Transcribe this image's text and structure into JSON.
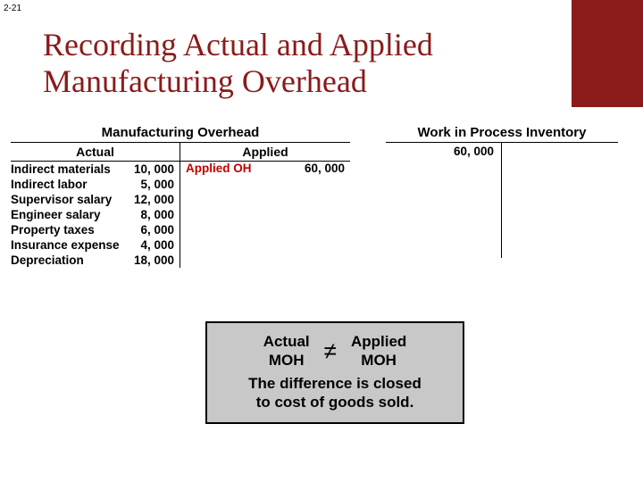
{
  "page_number": "2-21",
  "title": "Recording Actual and Applied Manufacturing Overhead",
  "colors": {
    "maroon": "#8b1a1a",
    "note_bg": "#c8c8c8",
    "applied_red": "#c00000"
  },
  "moh_account": {
    "title": "Manufacturing Overhead",
    "left_header": "Actual",
    "right_header": "Applied",
    "actual_rows": [
      {
        "label": "Indirect materials",
        "value": "10, 000"
      },
      {
        "label": "Indirect labor",
        "value": "5, 000"
      },
      {
        "label": "Supervisor salary",
        "value": "12, 000"
      },
      {
        "label": "Engineer salary",
        "value": "8, 000"
      },
      {
        "label": "Property taxes",
        "value": "6, 000"
      },
      {
        "label": "Insurance expense",
        "value": "4, 000"
      },
      {
        "label": "Depreciation",
        "value": "18, 000"
      }
    ],
    "applied_label": "Applied OH",
    "applied_value": "60, 000"
  },
  "wip_account": {
    "title": "Work in Process Inventory",
    "debit_value": "60, 000"
  },
  "note": {
    "left_line1": "Actual",
    "left_line2": "MOH",
    "right_line1": "Applied",
    "right_line2": "MOH",
    "neq": "≠",
    "bottom1": "The difference is closed",
    "bottom2": "to cost of goods sold."
  }
}
